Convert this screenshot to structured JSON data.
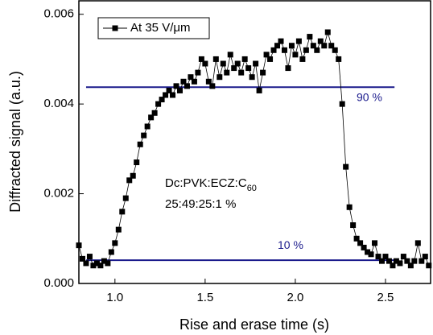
{
  "chart_data": {
    "type": "line",
    "xlabel": "Rise and erase time (s)",
    "ylabel": "Diffracted signal (a.u.)",
    "xlim": [
      0.8,
      2.75
    ],
    "ylim": [
      0,
      0.0063
    ],
    "xticks": [
      {
        "value": 1,
        "label": "1.0"
      },
      1.5,
      {
        "value": 2,
        "label": "2.0"
      },
      2.5
    ],
    "yticks": [
      {
        "value": 0,
        "label": "0.000"
      },
      {
        "value": 0.002,
        "label": "0.002"
      },
      {
        "value": 0.004,
        "label": "0.004"
      },
      {
        "value": 0.006,
        "label": "0.006"
      }
    ],
    "legend": "upper left",
    "x": [
      0.8,
      0.82,
      0.84,
      0.86,
      0.88,
      0.9,
      0.92,
      0.94,
      0.96,
      0.98,
      1.0,
      1.02,
      1.04,
      1.06,
      1.08,
      1.1,
      1.12,
      1.14,
      1.16,
      1.18,
      1.2,
      1.22,
      1.24,
      1.26,
      1.28,
      1.3,
      1.32,
      1.34,
      1.36,
      1.38,
      1.4,
      1.42,
      1.44,
      1.46,
      1.48,
      1.5,
      1.52,
      1.54,
      1.56,
      1.58,
      1.6,
      1.62,
      1.64,
      1.66,
      1.68,
      1.7,
      1.72,
      1.74,
      1.76,
      1.78,
      1.8,
      1.82,
      1.84,
      1.86,
      1.88,
      1.9,
      1.92,
      1.94,
      1.96,
      1.98,
      2.0,
      2.02,
      2.04,
      2.06,
      2.08,
      2.1,
      2.12,
      2.14,
      2.16,
      2.18,
      2.2,
      2.22,
      2.24,
      2.26,
      2.28,
      2.3,
      2.32,
      2.34,
      2.36,
      2.38,
      2.4,
      2.42,
      2.44,
      2.46,
      2.48,
      2.5,
      2.52,
      2.54,
      2.56,
      2.58,
      2.6,
      2.62,
      2.64,
      2.66,
      2.68,
      2.7,
      2.72,
      2.74
    ],
    "series": [
      {
        "name": "At 35 V/μm",
        "color": "#000000",
        "values": [
          0.00085,
          0.00055,
          0.00045,
          0.0006,
          0.0004,
          0.00045,
          0.0004,
          0.0005,
          0.00045,
          0.0007,
          0.0009,
          0.0012,
          0.0016,
          0.0019,
          0.0023,
          0.0024,
          0.0027,
          0.0031,
          0.0033,
          0.0035,
          0.0037,
          0.0038,
          0.004,
          0.0041,
          0.0042,
          0.0043,
          0.0042,
          0.0044,
          0.0043,
          0.0045,
          0.0044,
          0.0046,
          0.0045,
          0.0047,
          0.005,
          0.0049,
          0.0045,
          0.0044,
          0.005,
          0.0046,
          0.0049,
          0.0047,
          0.0051,
          0.0048,
          0.0049,
          0.0047,
          0.005,
          0.0048,
          0.0046,
          0.0049,
          0.0043,
          0.0047,
          0.0051,
          0.005,
          0.0052,
          0.0053,
          0.0054,
          0.0052,
          0.0048,
          0.0053,
          0.0051,
          0.0054,
          0.005,
          0.0052,
          0.0055,
          0.0053,
          0.0052,
          0.0054,
          0.0053,
          0.0056,
          0.0053,
          0.0052,
          0.005,
          0.004,
          0.0026,
          0.0017,
          0.0013,
          0.001,
          0.0009,
          0.0008,
          0.0007,
          0.00065,
          0.0009,
          0.0006,
          0.0005,
          0.0006,
          0.0005,
          0.0004,
          0.0005,
          0.00045,
          0.0006,
          0.0005,
          0.0004,
          0.0005,
          0.0009,
          0.0005,
          0.0006,
          0.0004
        ]
      }
    ],
    "reference_lines": [
      {
        "value": 0.004375,
        "label": "90 %",
        "color": "#1a1a8c",
        "xlim": [
          0.84,
          2.55
        ]
      },
      {
        "value": 0.000518,
        "label": "10 %",
        "color": "#1a1a8c",
        "xlim": [
          0.84,
          2.55
        ]
      }
    ],
    "annotation": {
      "lines": [
        {
          "text": "Dc:PVK:ECZ:C",
          "subscript": "60"
        },
        {
          "text": "25:49:25:1 %"
        }
      ]
    }
  }
}
